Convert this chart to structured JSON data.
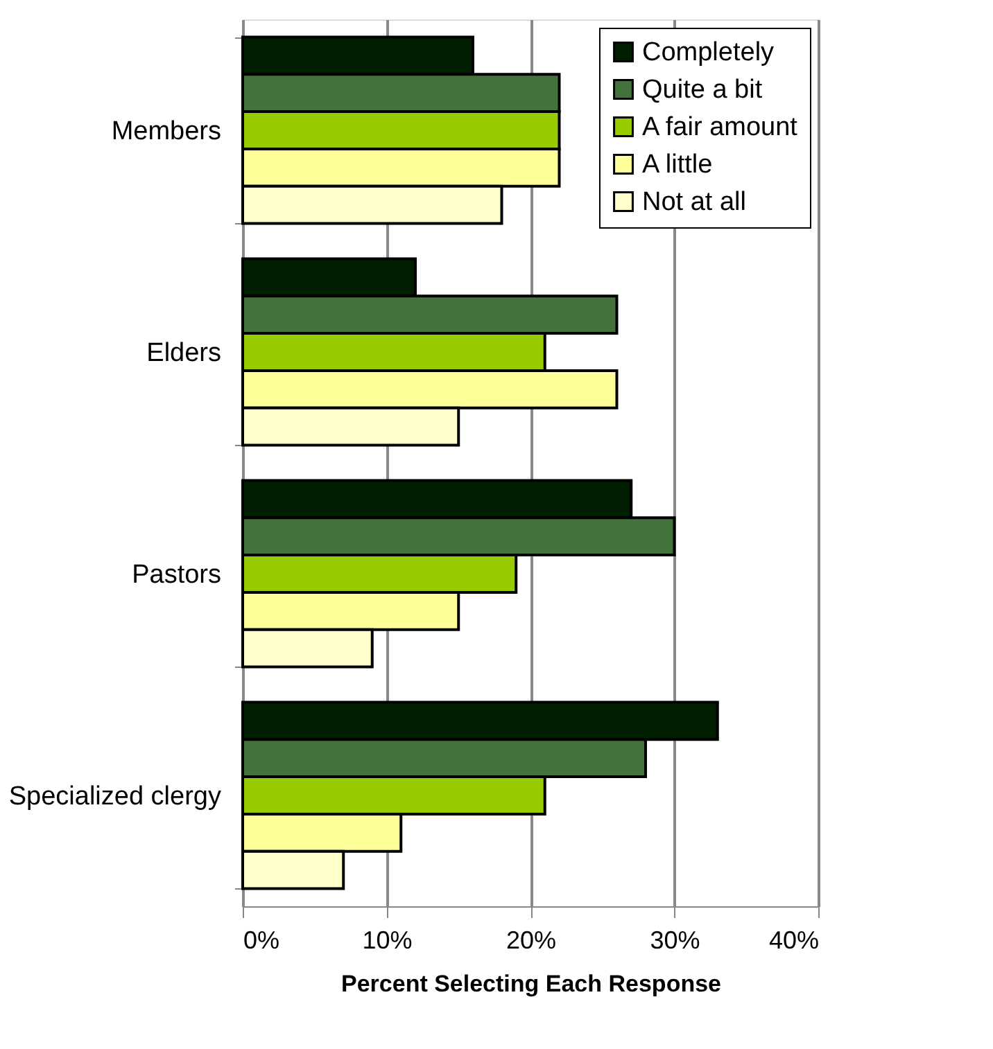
{
  "chart_data": {
    "type": "bar",
    "orientation": "horizontal",
    "xlabel": "Percent Selecting Each Response",
    "categories": [
      "Members",
      "Elders",
      "Pastors",
      "Specialized clergy"
    ],
    "series": [
      {
        "name": "Completely",
        "color": "#001e00",
        "values": [
          16,
          12,
          27,
          33
        ]
      },
      {
        "name": "Quite a bit",
        "color": "#43733a",
        "values": [
          22,
          26,
          30,
          28
        ]
      },
      {
        "name": "A fair amount",
        "color": "#99cc00",
        "values": [
          22,
          21,
          19,
          21
        ]
      },
      {
        "name": "A little",
        "color": "#ffff99",
        "values": [
          22,
          26,
          15,
          11
        ]
      },
      {
        "name": "Not at all",
        "color": "#ffffcc",
        "values": [
          18,
          15,
          9,
          7
        ]
      }
    ],
    "xlim": [
      0,
      40
    ],
    "xticks": [
      {
        "value": 0,
        "label": "0%"
      },
      {
        "value": 10,
        "label": "10%"
      },
      {
        "value": 20,
        "label": "20%"
      },
      {
        "value": 30,
        "label": "30%"
      },
      {
        "value": 40,
        "label": "40%"
      }
    ],
    "grid": "x",
    "legend": "top right"
  }
}
